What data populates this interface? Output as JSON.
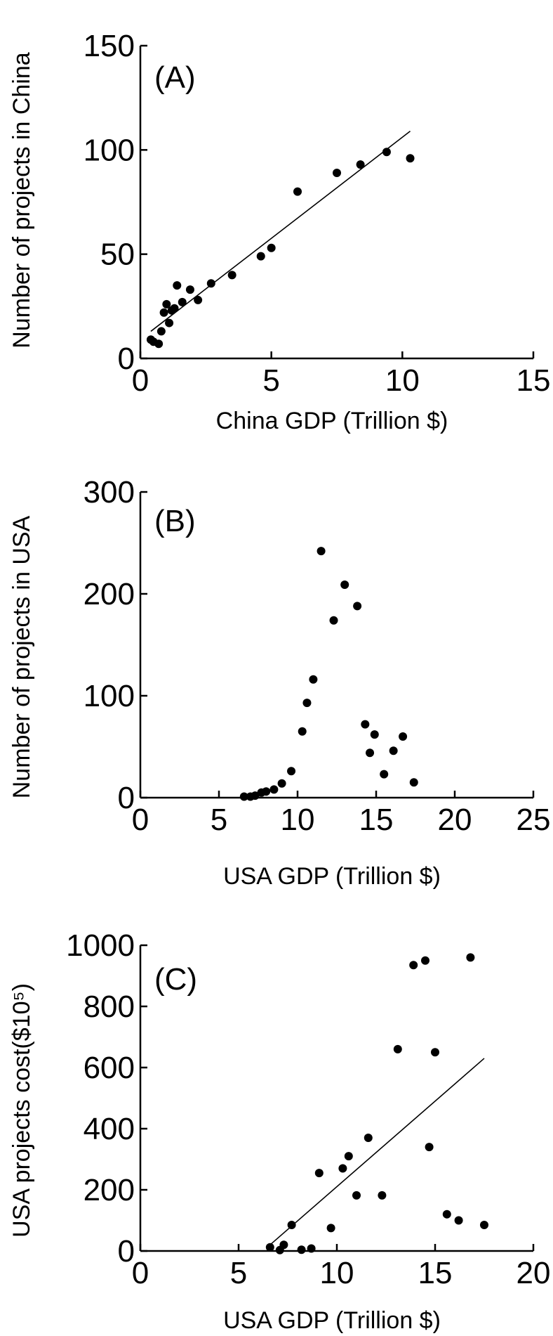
{
  "chart_data": [
    {
      "type": "scatter",
      "panel_label": "(A)",
      "xlabel": "China GDP (Trillion $)",
      "ylabel": "Number of projects in China",
      "xlim": [
        0,
        15
      ],
      "ylim": [
        0,
        150
      ],
      "xticks": [
        "0",
        "5",
        "10",
        "15"
      ],
      "yticks": [
        "0",
        "50",
        "100",
        "150"
      ],
      "x": [
        0.4,
        0.5,
        0.7,
        0.8,
        0.9,
        1.0,
        1.1,
        1.2,
        1.3,
        1.4,
        1.6,
        1.9,
        2.2,
        2.7,
        3.5,
        4.6,
        5.0,
        6.0,
        7.5,
        8.4,
        9.4,
        10.3
      ],
      "y": [
        9,
        8,
        7,
        13,
        22,
        26,
        17,
        23,
        24,
        35,
        27,
        33,
        28,
        36,
        40,
        49,
        53,
        80,
        89,
        93,
        99,
        96
      ],
      "fit_line": {
        "x": [
          0.4,
          10.3
        ],
        "y": [
          13,
          109
        ]
      }
    },
    {
      "type": "scatter",
      "panel_label": "(B)",
      "xlabel": "USA GDP (Trillion $)",
      "ylabel": "Number of projects in USA",
      "xlim": [
        0,
        25
      ],
      "ylim": [
        0,
        300
      ],
      "xticks": [
        "0",
        "5",
        "10",
        "15",
        "20",
        "25"
      ],
      "yticks": [
        "0",
        "100",
        "200",
        "300"
      ],
      "x": [
        6.6,
        7.0,
        7.3,
        7.7,
        8.0,
        8.5,
        9.0,
        9.6,
        10.3,
        10.6,
        11.0,
        11.5,
        12.3,
        13.0,
        13.8,
        14.3,
        14.6,
        14.9,
        15.5,
        16.1,
        16.7,
        17.4
      ],
      "y": [
        1,
        1,
        2,
        5,
        6,
        8,
        14,
        26,
        65,
        93,
        116,
        242,
        174,
        209,
        188,
        72,
        44,
        62,
        23,
        46,
        60,
        15
      ],
      "fit_line": null
    },
    {
      "type": "scatter",
      "panel_label": "(C)",
      "xlabel": "USA GDP (Trillion $)",
      "ylabel": "USA projects cost($10⁵)",
      "xlim": [
        0,
        20
      ],
      "ylim": [
        0,
        1000
      ],
      "xticks": [
        "0",
        "5",
        "10",
        "15",
        "20"
      ],
      "yticks": [
        "0",
        "200",
        "400",
        "600",
        "800",
        "1000"
      ],
      "x": [
        6.6,
        7.1,
        7.3,
        7.7,
        8.2,
        8.7,
        9.1,
        9.7,
        10.3,
        10.6,
        11.0,
        11.6,
        12.3,
        13.1,
        13.9,
        14.5,
        14.7,
        15.0,
        15.6,
        16.2,
        16.8,
        17.5
      ],
      "y": [
        12,
        3,
        20,
        85,
        4,
        8,
        255,
        75,
        270,
        310,
        182,
        370,
        182,
        660,
        935,
        950,
        340,
        650,
        120,
        100,
        960,
        85
      ],
      "fit_line": {
        "x": [
          6.6,
          17.5
        ],
        "y": [
          20,
          630
        ]
      }
    }
  ]
}
